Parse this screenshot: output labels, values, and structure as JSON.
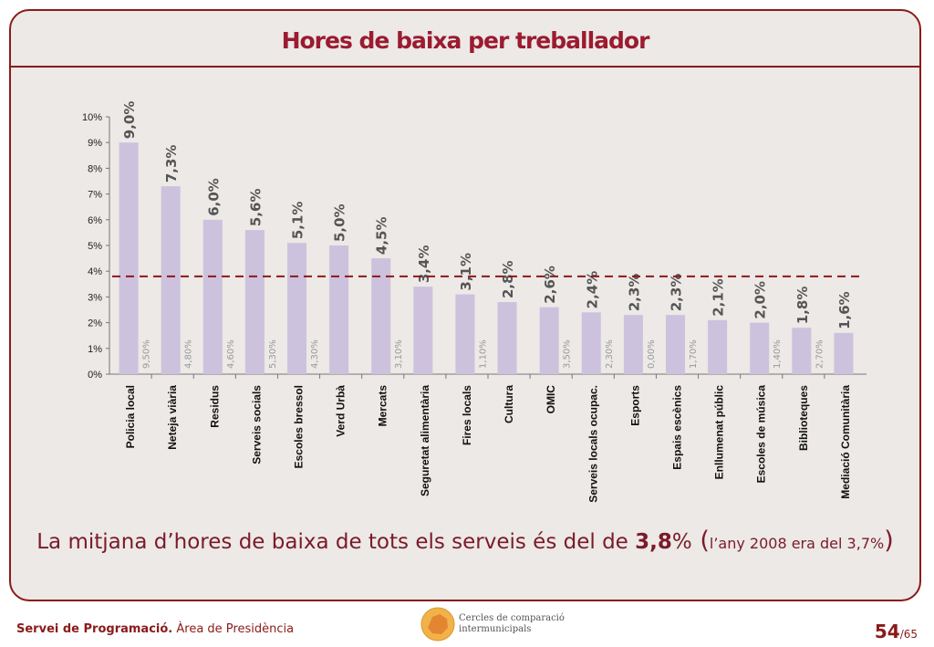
{
  "title": "Hores de baixa per treballador",
  "summary": {
    "prefix": "La mitjana d’hores de baixa de tots els serveis és del de ",
    "value": "3,8",
    "percent": "%",
    "open": " (",
    "note": "l’any 2008 era del 3,7%",
    "close": ")"
  },
  "footer": {
    "org": "Servei de Programació.",
    "area": " Àrea de Presidència",
    "logo_line1": "Cercles de comparació",
    "logo_line2": "intermunicipals",
    "page": "54",
    "total": "/65"
  },
  "chart_data": {
    "type": "bar",
    "categories": [
      "Policia local",
      "Neteja viària",
      "Residus",
      "Serveis socials",
      "Escoles bressol",
      "Verd Urbà",
      "Mercats",
      "Seguretat alimentària",
      "Fires locals",
      "Cultura",
      "OMIC",
      "Serveis locals ocupac.",
      "Esports",
      "Espais escènics",
      "Enllumenat públic",
      "Escoles de música",
      "Biblioteques",
      "Mediació Comunitària"
    ],
    "values": [
      9.0,
      7.3,
      6.0,
      5.6,
      5.1,
      5.0,
      4.5,
      3.4,
      3.1,
      2.8,
      2.6,
      2.4,
      2.3,
      2.3,
      2.1,
      2.0,
      1.8,
      1.6
    ],
    "value_labels": [
      "9,0%",
      "7,3%",
      "6,0%",
      "5,6%",
      "5,1%",
      "5,0%",
      "4,5%",
      "3,4%",
      "3,1%",
      "2,8%",
      "2,6%",
      "2,4%",
      "2,3%",
      "2,3%",
      "2,1%",
      "2,0%",
      "1,8%",
      "1,6%"
    ],
    "secondary_labels": [
      "9,50%",
      "4,80%",
      "4,60%",
      "5,30%",
      "4,30%",
      "",
      "3,10%",
      "",
      "1,10%",
      "",
      "3,50%",
      "2,30%",
      "0,00%",
      "1,70%",
      "",
      "1,40%",
      "2,70%",
      ""
    ],
    "yticks": [
      "0%",
      "1%",
      "2%",
      "3%",
      "4%",
      "5%",
      "6%",
      "7%",
      "8%",
      "9%",
      "10%"
    ],
    "ylim": [
      0,
      10
    ],
    "average": 3.8,
    "bar_color": "#cdc2dd",
    "average_color": "#8b1a1a",
    "label_color": "#555555",
    "secondary_label_color": "#9a9a9a"
  }
}
